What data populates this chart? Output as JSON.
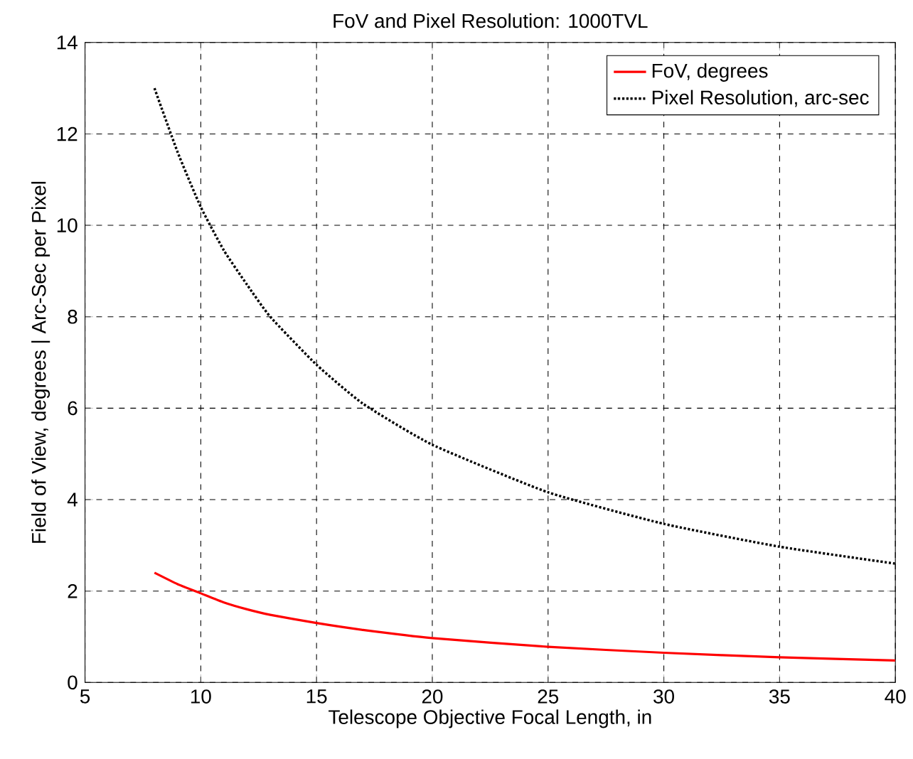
{
  "chart_data": {
    "type": "line",
    "title": "FoV and Pixel Resolution: 1000TVL",
    "xlabel": "Telescope Objective Focal Length, in",
    "ylabel": "Field of View, degrees | Arc-Sec per Pixel",
    "xlim": [
      5,
      40
    ],
    "xticks": [
      5,
      10,
      15,
      20,
      25,
      30,
      35,
      40
    ],
    "ylim": [
      0,
      14
    ],
    "yticks": [
      0,
      2,
      4,
      6,
      8,
      10,
      12,
      14
    ],
    "grid": true,
    "legend": "top right",
    "marker": "none",
    "series": [
      {
        "name": "FoV, degrees",
        "color": "#ff0000",
        "line_style": "solid",
        "x": [
          8,
          9,
          10,
          11,
          12,
          13,
          15,
          17,
          20,
          25,
          30,
          35,
          40
        ],
        "values": [
          2.4,
          2.15,
          1.95,
          1.75,
          1.6,
          1.48,
          1.3,
          1.15,
          0.97,
          0.78,
          0.65,
          0.55,
          0.48
        ]
      },
      {
        "name": "Pixel Resolution, arc-sec",
        "color": "#000000",
        "line_style": "dotted",
        "x": [
          8,
          9,
          10,
          11,
          12,
          13,
          15,
          17,
          20,
          25,
          30,
          35,
          40
        ],
        "values": [
          13.0,
          11.6,
          10.4,
          9.45,
          8.7,
          8.0,
          6.95,
          6.1,
          5.2,
          4.16,
          3.47,
          2.97,
          2.6
        ]
      }
    ]
  }
}
